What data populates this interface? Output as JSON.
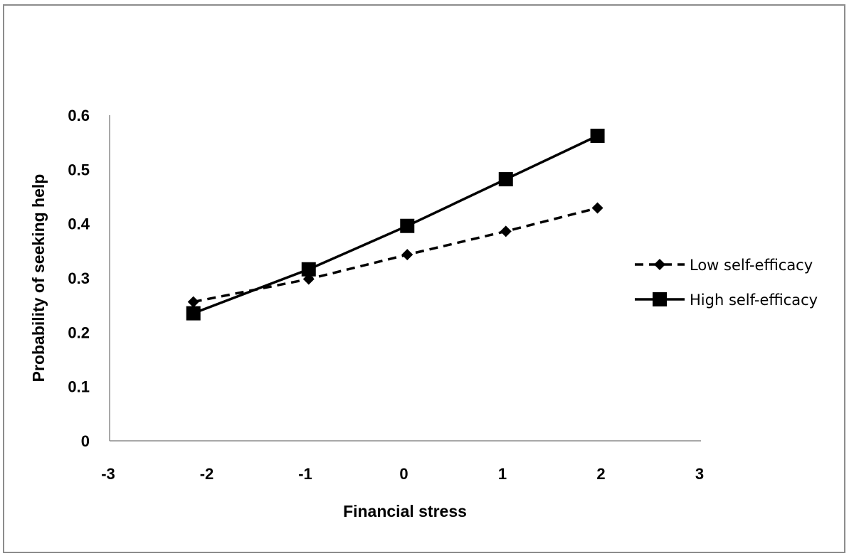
{
  "chart_data": {
    "type": "line",
    "title": "",
    "xlabel": "Financial stress",
    "ylabel": "Probability of seeking help",
    "xlim": [
      -3,
      3
    ],
    "ylim": [
      0,
      0.6
    ],
    "x_ticks": [
      "-3",
      "-2",
      "-1",
      "0",
      "1",
      "2",
      "3"
    ],
    "y_ticks": [
      "0",
      "0.1",
      "0.2",
      "0.3",
      "0.4",
      "0.5",
      "0.6"
    ],
    "grid": false,
    "legend_position": "right",
    "series": [
      {
        "name": "Low self-efficacy",
        "style": "dashed",
        "marker": "diamond",
        "color": "#000000",
        "points": [
          {
            "x": -2.15,
            "y": 0.256
          },
          {
            "x": -0.98,
            "y": 0.298
          },
          {
            "x": 0.02,
            "y": 0.343
          },
          {
            "x": 1.02,
            "y": 0.386
          },
          {
            "x": 1.95,
            "y": 0.429
          }
        ]
      },
      {
        "name": "High self-efficacy",
        "style": "solid",
        "marker": "square",
        "color": "#000000",
        "points": [
          {
            "x": -2.15,
            "y": 0.235
          },
          {
            "x": -0.98,
            "y": 0.316
          },
          {
            "x": 0.02,
            "y": 0.396
          },
          {
            "x": 1.02,
            "y": 0.482
          },
          {
            "x": 1.95,
            "y": 0.562
          }
        ]
      }
    ]
  }
}
